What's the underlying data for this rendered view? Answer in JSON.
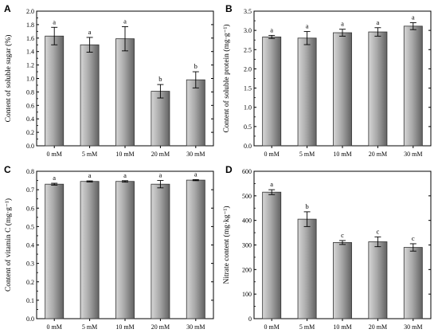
{
  "chart_data": [
    {
      "panel": "A",
      "type": "bar",
      "categories": [
        "0 mM",
        "5 mM",
        "10 mM",
        "20 mM",
        "30 mM"
      ],
      "values": [
        1.63,
        1.5,
        1.59,
        0.81,
        0.98
      ],
      "errors": [
        0.13,
        0.11,
        0.18,
        0.1,
        0.12
      ],
      "significance": [
        "a",
        "a",
        "a",
        "b",
        "b"
      ],
      "ylabel": "Content of soluble sugar (%)",
      "ylim": [
        0,
        2.0
      ],
      "yticks": [
        "0.0",
        "0.2",
        "0.4",
        "0.6",
        "0.8",
        "1.0",
        "1.2",
        "1.4",
        "1.6",
        "1.8",
        "2.0"
      ]
    },
    {
      "panel": "B",
      "type": "bar",
      "categories": [
        "0 mM",
        "5 mM",
        "10 mM",
        "20 mM",
        "30 mM"
      ],
      "values": [
        2.83,
        2.8,
        2.94,
        2.96,
        3.11
      ],
      "errors": [
        0.04,
        0.17,
        0.09,
        0.11,
        0.09
      ],
      "significance": [
        "a",
        "a",
        "a",
        "a",
        "a"
      ],
      "ylabel": "Content of soluble protein (mg·g⁻¹)",
      "ylim": [
        0,
        3.5
      ],
      "yticks": [
        "0.0",
        "0.5",
        "1.0",
        "1.5",
        "2.0",
        "2.5",
        "3.0",
        "3.5"
      ]
    },
    {
      "panel": "C",
      "type": "bar",
      "categories": [
        "0 mM",
        "5 mM",
        "10 mM",
        "20 mM",
        "30 mM"
      ],
      "values": [
        0.73,
        0.745,
        0.745,
        0.73,
        0.752
      ],
      "errors": [
        0.005,
        0.003,
        0.004,
        0.02,
        0.003
      ],
      "significance": [
        "a",
        "a",
        "a",
        "a",
        "a"
      ],
      "ylabel": "Content of vitamin C (mg·g⁻¹)",
      "ylim": [
        0,
        0.8
      ],
      "yticks": [
        "0.0",
        "0.1",
        "0.2",
        "0.3",
        "0.4",
        "0.5",
        "0.6",
        "0.7",
        "0.8"
      ]
    },
    {
      "panel": "D",
      "type": "bar",
      "categories": [
        "0 mM",
        "5 mM",
        "10 mM",
        "20 mM",
        "30 mM"
      ],
      "values": [
        515,
        405,
        310,
        313,
        290
      ],
      "errors": [
        10,
        30,
        8,
        20,
        15
      ],
      "significance": [
        "a",
        "b",
        "c",
        "c",
        "c"
      ],
      "ylabel": "Nitrate content (mg·kg⁻¹)",
      "ylim": [
        0,
        600
      ],
      "yticks": [
        "0",
        "100",
        "200",
        "300",
        "400",
        "500",
        "600"
      ]
    }
  ],
  "colors": {
    "bar_fill_light": "#cfcfcf",
    "bar_fill_dark": "#6a6a6a",
    "bar_stroke": "#333333",
    "axis": "#000000"
  }
}
